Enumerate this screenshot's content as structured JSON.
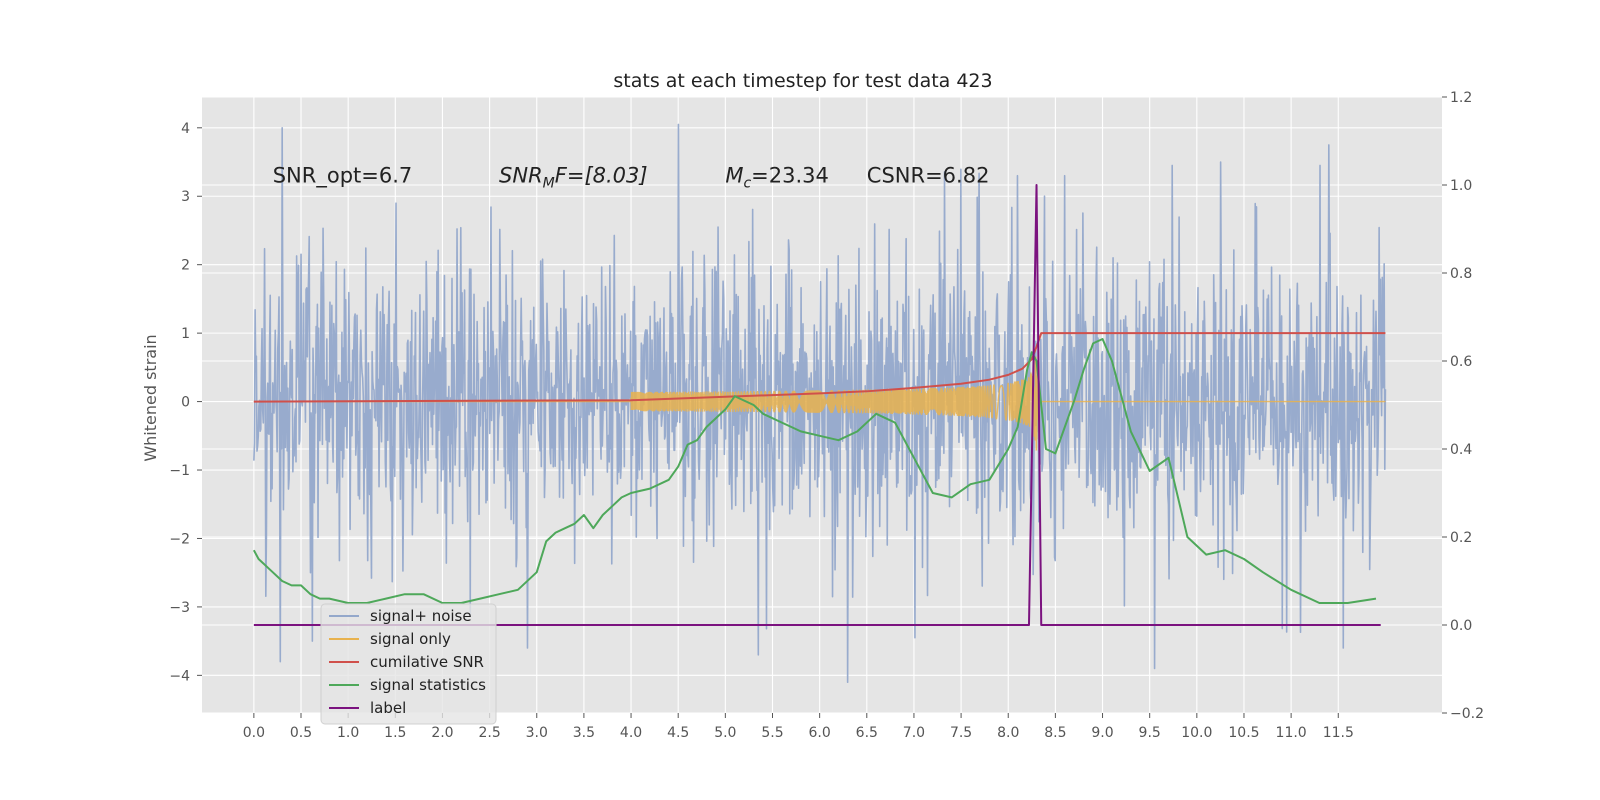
{
  "chart_data": {
    "type": "line",
    "title": "stats at each timestep for test data 423",
    "ylabel": "Whitened strain",
    "ylabel_right": "",
    "xlim": [
      -0.55,
      12.6
    ],
    "ylim": [
      -4.55,
      4.45
    ],
    "ylim_right": [
      -0.2,
      1.2
    ],
    "x_ticks": [
      0.0,
      0.5,
      1.0,
      1.5,
      2.0,
      2.5,
      3.0,
      3.5,
      4.0,
      4.5,
      5.0,
      5.5,
      6.0,
      6.5,
      7.0,
      7.5,
      8.0,
      8.5,
      9.0,
      9.5,
      10.0,
      10.5,
      11.0,
      11.5
    ],
    "x_tick_labels": [
      "0.0",
      "0.5",
      "1.0",
      "1.5",
      "2.0",
      "2.5",
      "3.0",
      "3.5",
      "4.0",
      "4.5",
      "5.0",
      "5.5",
      "6.0",
      "6.5",
      "7.0",
      "7.5",
      "8.0",
      "8.5",
      "9.0",
      "9.5",
      "10.0",
      "10.5",
      "11.0",
      "11.5"
    ],
    "y_ticks": [
      -4,
      -3,
      -2,
      -1,
      0,
      1,
      2,
      3,
      4
    ],
    "y_tick_labels": [
      "−4",
      "−3",
      "−2",
      "−1",
      "0",
      "1",
      "2",
      "3",
      "4"
    ],
    "y_ticks_right": [
      -0.2,
      0.0,
      0.2,
      0.4,
      0.6,
      0.8,
      1.0,
      1.2
    ],
    "y_tick_labels_right": [
      "−0.2",
      "0.0",
      "0.2",
      "0.4",
      "0.6",
      "0.8",
      "1.0",
      "1.2"
    ],
    "grid": true,
    "legend_position": "lower-left",
    "annotations": [
      {
        "text": "SNR_opt=6.7",
        "x": 0.2,
        "y": 3.2
      },
      {
        "text": "SNR",
        "sub": "M",
        "suffix": "F=[8.03]",
        "x": 2.6,
        "y": 3.2
      },
      {
        "text": "M",
        "sub": "c",
        "suffix": "=23.34",
        "x": 5.0,
        "y": 3.2
      },
      {
        "text": "CSNR=6.82",
        "x": 6.5,
        "y": 3.2
      }
    ],
    "series": [
      {
        "name": "signal+ noise",
        "axis": "left",
        "color": "#94a8cb",
        "style": "noise",
        "x_range": [
          0.0,
          12.0
        ],
        "amplitude_std": 1.05,
        "peaks": [
          {
            "x": 0.3,
            "y": 4.0
          },
          {
            "x": 0.28,
            "y": -3.8
          },
          {
            "x": 0.62,
            "y": -3.5
          },
          {
            "x": 2.9,
            "y": -3.6
          },
          {
            "x": 4.5,
            "y": 4.05
          },
          {
            "x": 5.35,
            "y": -3.7
          },
          {
            "x": 6.3,
            "y": -4.1
          },
          {
            "x": 8.1,
            "y": 3.3
          },
          {
            "x": 8.6,
            "y": 3.3
          },
          {
            "x": 9.55,
            "y": -3.9
          },
          {
            "x": 10.25,
            "y": 3.5
          },
          {
            "x": 11.4,
            "y": 3.75
          },
          {
            "x": 11.55,
            "y": -3.6
          }
        ]
      },
      {
        "name": "signal only",
        "axis": "left",
        "color": "#e8b24e",
        "style": "chirp",
        "merger_x": 8.3,
        "peak_amplitude": 0.9
      },
      {
        "name": "cumilative SNR",
        "axis": "left",
        "color": "#d0504b",
        "x": [
          0.0,
          4.0,
          5.0,
          6.0,
          6.5,
          7.0,
          7.5,
          7.8,
          8.0,
          8.15,
          8.25,
          8.3,
          8.35,
          12.0
        ],
        "y": [
          0.0,
          0.02,
          0.07,
          0.12,
          0.15,
          0.2,
          0.26,
          0.32,
          0.39,
          0.48,
          0.62,
          0.8,
          1.0,
          1.0
        ]
      },
      {
        "name": "signal statistics",
        "axis": "right",
        "color": "#4ea85a",
        "x": [
          0.0,
          0.05,
          0.1,
          0.15,
          0.2,
          0.3,
          0.4,
          0.5,
          0.6,
          0.7,
          0.8,
          1.0,
          1.2,
          1.4,
          1.6,
          1.8,
          2.0,
          2.2,
          2.4,
          2.6,
          2.8,
          3.0,
          3.1,
          3.2,
          3.3,
          3.4,
          3.5,
          3.6,
          3.7,
          3.8,
          3.9,
          4.0,
          4.2,
          4.4,
          4.5,
          4.6,
          4.7,
          4.8,
          5.0,
          5.1,
          5.2,
          5.3,
          5.4,
          5.6,
          5.8,
          6.0,
          6.2,
          6.4,
          6.6,
          6.8,
          7.0,
          7.2,
          7.4,
          7.6,
          7.8,
          8.0,
          8.1,
          8.2,
          8.25,
          8.3,
          8.4,
          8.5,
          8.6,
          8.7,
          8.8,
          8.9,
          9.0,
          9.1,
          9.3,
          9.5,
          9.7,
          9.9,
          10.1,
          10.3,
          10.5,
          10.7,
          11.0,
          11.3,
          11.6,
          11.9
        ],
        "y": [
          0.17,
          0.15,
          0.14,
          0.13,
          0.12,
          0.1,
          0.09,
          0.09,
          0.07,
          0.06,
          0.06,
          0.05,
          0.05,
          0.06,
          0.07,
          0.07,
          0.05,
          0.05,
          0.06,
          0.07,
          0.08,
          0.12,
          0.19,
          0.21,
          0.22,
          0.23,
          0.25,
          0.22,
          0.25,
          0.27,
          0.29,
          0.3,
          0.31,
          0.33,
          0.36,
          0.41,
          0.42,
          0.45,
          0.49,
          0.52,
          0.51,
          0.5,
          0.48,
          0.46,
          0.44,
          0.43,
          0.42,
          0.44,
          0.48,
          0.46,
          0.38,
          0.3,
          0.29,
          0.32,
          0.33,
          0.4,
          0.45,
          0.58,
          0.62,
          0.6,
          0.4,
          0.39,
          0.45,
          0.51,
          0.58,
          0.64,
          0.65,
          0.6,
          0.44,
          0.35,
          0.38,
          0.2,
          0.16,
          0.17,
          0.15,
          0.12,
          0.08,
          0.05,
          0.05,
          0.06
        ]
      },
      {
        "name": "label",
        "axis": "right",
        "color": "#7b127f",
        "x": [
          0.0,
          8.22,
          8.3,
          8.35,
          11.95
        ],
        "y": [
          0.0,
          0.0,
          1.0,
          0.0,
          0.0
        ]
      }
    ],
    "legend_entries": [
      "signal+ noise",
      "signal only",
      "cumilative SNR",
      "signal statistics",
      "label"
    ]
  }
}
